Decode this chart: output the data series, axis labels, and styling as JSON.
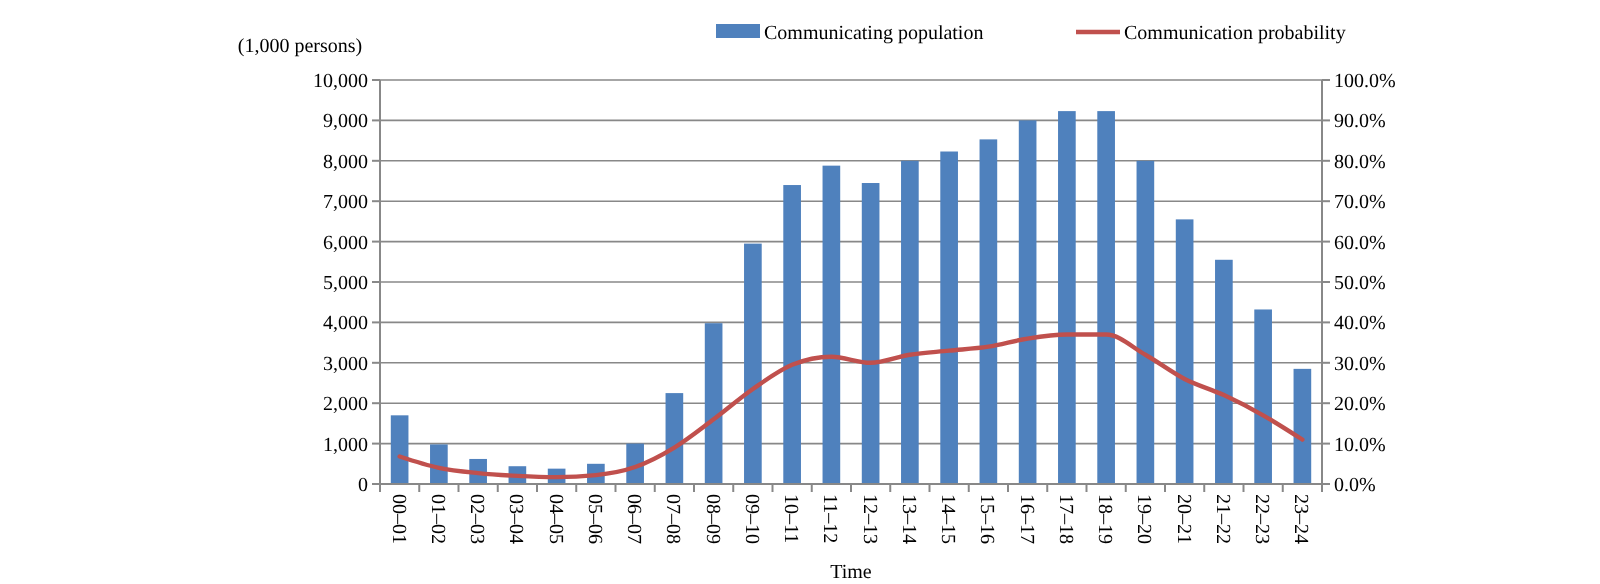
{
  "chart_data": {
    "type": "bar",
    "xlabel": "Time",
    "ylabel": "(1,000 persons)",
    "categories": [
      "00–01",
      "01–02",
      "02–03",
      "03–04",
      "04–05",
      "05–06",
      "06–07",
      "07–08",
      "08–09",
      "09–10",
      "10–11",
      "11–12",
      "12–13",
      "13–14",
      "14–15",
      "15–16",
      "16–17",
      "17–18",
      "18–19",
      "19–20",
      "20–21",
      "21–22",
      "22–23",
      "23–24"
    ],
    "series": [
      {
        "name": "Communicating population",
        "color": "#4f81bd",
        "values": [
          1700,
          980,
          620,
          440,
          380,
          500,
          1000,
          2250,
          3980,
          5950,
          7400,
          7880,
          7450,
          8000,
          8230,
          8530,
          9000,
          9230,
          9230,
          8000,
          6550,
          5550,
          4320,
          2850
        ]
      },
      {
        "name": "Communication probability",
        "type": "line",
        "axis": "y2",
        "color": "#c0504d",
        "values": [
          6.8,
          4,
          2.7,
          2,
          1.7,
          2.2,
          4.2,
          9,
          16,
          23.5,
          29.5,
          31.5,
          30,
          32,
          33,
          34,
          36,
          37,
          37,
          32,
          26,
          22,
          17,
          11
        ]
      }
    ],
    "ylim": [
      0,
      10000
    ],
    "yticks": [
      0,
      {
        "value": 1000,
        "label": "1,000"
      },
      {
        "value": 2000,
        "label": "2,000"
      },
      {
        "value": 3000,
        "label": "3,000"
      },
      {
        "value": 4000,
        "label": "4,000"
      },
      {
        "value": 5000,
        "label": "5,000"
      },
      {
        "value": 6000,
        "label": "6,000"
      },
      {
        "value": 7000,
        "label": "7,000"
      },
      {
        "value": 8000,
        "label": "8,000"
      },
      {
        "value": 9000,
        "label": "9,000"
      },
      {
        "value": 10000,
        "label": "10,000"
      }
    ],
    "y2lim": [
      0,
      100
    ],
    "y2ticks": [
      {
        "value": 0,
        "label": "0.0%"
      },
      {
        "value": 10,
        "label": "10.0%"
      },
      {
        "value": 20,
        "label": "20.0%"
      },
      {
        "value": 30,
        "label": "30.0%"
      },
      {
        "value": 40,
        "label": "40.0%"
      },
      {
        "value": 50,
        "label": "50.0%"
      },
      {
        "value": 60,
        "label": "60.0%"
      },
      {
        "value": 70,
        "label": "70.0%"
      },
      {
        "value": 80,
        "label": "80.0%"
      },
      {
        "value": 90,
        "label": "90.0%"
      },
      {
        "value": 100,
        "label": "100.0%"
      }
    ],
    "grid": "y",
    "legend": "top"
  }
}
